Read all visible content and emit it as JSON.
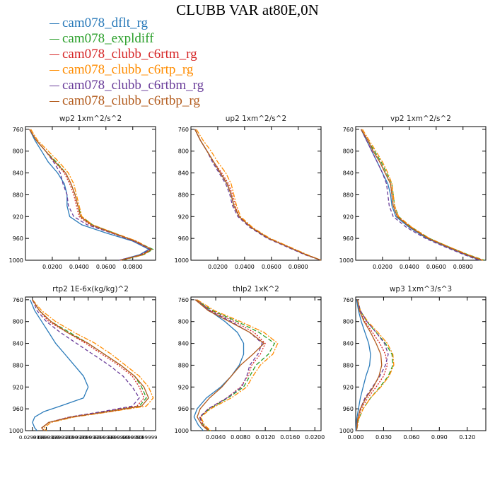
{
  "figure": {
    "title": "CLUBB VAR at80E,0N"
  },
  "legend": [
    {
      "label": "cam078_dflt_rg",
      "color": "#2b7bba"
    },
    {
      "label": "cam078_expldiff",
      "color": "#2ca02c"
    },
    {
      "label": "cam078_clubb_c6rtm_rg",
      "color": "#d62728"
    },
    {
      "label": "cam078_clubb_c6rtp_rg",
      "color": "#ff8c00"
    },
    {
      "label": "cam078_clubb_c6rtbm_rg",
      "color": "#6a3d9a"
    },
    {
      "label": "cam078_clubb_c6rtbp_rg",
      "color": "#b35c1e"
    }
  ],
  "series_styles": [
    {
      "color": "#2b7bba",
      "dash": ""
    },
    {
      "color": "#2ca02c",
      "dash": "6,3"
    },
    {
      "color": "#d62728",
      "dash": "2,2"
    },
    {
      "color": "#ff8c00",
      "dash": "7,2,2,2"
    },
    {
      "color": "#6a3d9a",
      "dash": "5,3"
    },
    {
      "color": "#b35c1e",
      "dash": ""
    }
  ],
  "chart_data": [
    {
      "type": "line",
      "title": "wp2  1xm^2/s^2",
      "y_label_ticks": [
        "760",
        "800",
        "840",
        "880",
        "920",
        "960",
        "1000"
      ],
      "ylim": [
        755,
        1000
      ],
      "xlim": [
        0.0,
        0.097
      ],
      "x_ticks": [
        0.02,
        0.04,
        0.06,
        0.08
      ],
      "x_tick_labels": [
        "0.0200",
        "0.0400",
        "0.0600",
        "0.0800"
      ],
      "levels": [
        760,
        780,
        800,
        820,
        840,
        860,
        880,
        900,
        920,
        935,
        950,
        965,
        980,
        990,
        1000
      ],
      "series": [
        {
          "values": [
            0.003,
            0.007,
            0.012,
            0.017,
            0.024,
            0.029,
            0.031,
            0.031,
            0.033,
            0.042,
            0.06,
            0.08,
            0.092,
            0.085,
            0.07
          ]
        },
        {
          "values": [
            0.003,
            0.008,
            0.015,
            0.023,
            0.03,
            0.034,
            0.037,
            0.039,
            0.042,
            0.05,
            0.066,
            0.082,
            0.095,
            0.088,
            0.072
          ]
        },
        {
          "values": [
            0.003,
            0.008,
            0.015,
            0.022,
            0.029,
            0.033,
            0.036,
            0.038,
            0.04,
            0.048,
            0.064,
            0.081,
            0.093,
            0.086,
            0.07
          ]
        },
        {
          "values": [
            0.004,
            0.009,
            0.017,
            0.025,
            0.032,
            0.036,
            0.038,
            0.04,
            0.042,
            0.05,
            0.066,
            0.083,
            0.094,
            0.088,
            0.071
          ]
        },
        {
          "values": [
            0.003,
            0.008,
            0.015,
            0.021,
            0.026,
            0.028,
            0.031,
            0.032,
            0.036,
            0.046,
            0.064,
            0.081,
            0.093,
            0.086,
            0.07
          ]
        },
        {
          "values": [
            0.003,
            0.008,
            0.015,
            0.022,
            0.03,
            0.034,
            0.037,
            0.039,
            0.041,
            0.049,
            0.065,
            0.082,
            0.094,
            0.087,
            0.071
          ]
        }
      ]
    },
    {
      "type": "line",
      "title": "up2  1xm^2/s^2",
      "y_label_ticks": [
        "760",
        "800",
        "840",
        "880",
        "920",
        "960",
        "1000"
      ],
      "ylim": [
        755,
        1000
      ],
      "xlim": [
        0.0,
        0.097
      ],
      "x_ticks": [
        0.02,
        0.04,
        0.06,
        0.08
      ],
      "x_tick_labels": [
        "0.0200",
        "0.0400",
        "0.0600",
        "0.0800"
      ],
      "levels": [
        760,
        780,
        800,
        820,
        840,
        860,
        880,
        900,
        920,
        940,
        960,
        975,
        990,
        1000
      ],
      "series": [
        {
          "values": [
            0.003,
            0.007,
            0.012,
            0.017,
            0.022,
            0.027,
            0.03,
            0.032,
            0.036,
            0.045,
            0.058,
            0.072,
            0.086,
            0.097
          ]
        },
        {
          "values": [
            0.003,
            0.007,
            0.012,
            0.017,
            0.022,
            0.027,
            0.03,
            0.032,
            0.036,
            0.045,
            0.058,
            0.072,
            0.086,
            0.097
          ]
        },
        {
          "values": [
            0.003,
            0.007,
            0.012,
            0.017,
            0.023,
            0.028,
            0.031,
            0.033,
            0.036,
            0.045,
            0.058,
            0.072,
            0.086,
            0.097
          ]
        },
        {
          "values": [
            0.004,
            0.009,
            0.015,
            0.02,
            0.026,
            0.03,
            0.032,
            0.034,
            0.037,
            0.046,
            0.059,
            0.073,
            0.087,
            0.097
          ]
        },
        {
          "values": [
            0.003,
            0.007,
            0.012,
            0.016,
            0.021,
            0.026,
            0.029,
            0.031,
            0.035,
            0.044,
            0.057,
            0.071,
            0.085,
            0.097
          ]
        },
        {
          "values": [
            0.003,
            0.007,
            0.012,
            0.017,
            0.022,
            0.027,
            0.03,
            0.032,
            0.036,
            0.045,
            0.058,
            0.072,
            0.086,
            0.097
          ]
        }
      ]
    },
    {
      "type": "line",
      "title": "vp2  1xm^2/s^2",
      "y_label_ticks": [
        "760",
        "800",
        "840",
        "880",
        "920",
        "960",
        "1000"
      ],
      "ylim": [
        755,
        1000
      ],
      "xlim": [
        0.0,
        0.097
      ],
      "x_ticks": [
        0.02,
        0.04,
        0.06,
        0.08
      ],
      "x_tick_labels": [
        "0.0200",
        "0.0400",
        "0.0600",
        "0.0800"
      ],
      "levels": [
        760,
        780,
        800,
        820,
        840,
        860,
        880,
        900,
        920,
        940,
        960,
        975,
        990,
        1000
      ],
      "series": [
        {
          "values": [
            0.004,
            0.008,
            0.012,
            0.016,
            0.02,
            0.024,
            0.026,
            0.027,
            0.03,
            0.04,
            0.053,
            0.067,
            0.082,
            0.093
          ]
        },
        {
          "values": [
            0.004,
            0.009,
            0.014,
            0.019,
            0.023,
            0.027,
            0.028,
            0.029,
            0.032,
            0.042,
            0.055,
            0.069,
            0.084,
            0.096
          ]
        },
        {
          "values": [
            0.004,
            0.009,
            0.013,
            0.018,
            0.022,
            0.026,
            0.027,
            0.028,
            0.031,
            0.041,
            0.054,
            0.068,
            0.083,
            0.095
          ]
        },
        {
          "values": [
            0.005,
            0.01,
            0.015,
            0.02,
            0.024,
            0.027,
            0.028,
            0.029,
            0.032,
            0.042,
            0.055,
            0.069,
            0.084,
            0.095
          ]
        },
        {
          "values": [
            0.004,
            0.008,
            0.012,
            0.016,
            0.02,
            0.023,
            0.024,
            0.025,
            0.028,
            0.038,
            0.052,
            0.066,
            0.081,
            0.092
          ]
        },
        {
          "values": [
            0.004,
            0.009,
            0.013,
            0.018,
            0.022,
            0.026,
            0.027,
            0.028,
            0.031,
            0.041,
            0.054,
            0.068,
            0.083,
            0.094
          ]
        }
      ]
    },
    {
      "type": "line",
      "title": "rtp2  1E-6x(kg/kg)^2",
      "y_label_ticks": [
        "760",
        "800",
        "840",
        "880",
        "920",
        "960",
        "1000"
      ],
      "ylim": [
        755,
        1000
      ],
      "xlim": [
        0.0,
        0.56
      ],
      "x_ticks": [
        0.03,
        0.09,
        0.15,
        0.21,
        0.27,
        0.33,
        0.39,
        0.45,
        0.51
      ],
      "x_tick_labels": [
        "0.0299999",
        "0.0899999",
        "0.1499999",
        "0.2099999",
        "0.2699999",
        "0.3299999",
        "0.3899999",
        "0.4499999",
        "0.5099999"
      ],
      "levels": [
        760,
        780,
        800,
        820,
        840,
        860,
        880,
        900,
        920,
        940,
        955,
        965,
        975,
        985,
        995,
        1000
      ],
      "series": [
        {
          "values": [
            0.02,
            0.04,
            0.07,
            0.1,
            0.13,
            0.17,
            0.21,
            0.25,
            0.27,
            0.25,
            0.15,
            0.08,
            0.04,
            0.03,
            0.04,
            0.05
          ]
        },
        {
          "values": [
            0.03,
            0.06,
            0.11,
            0.19,
            0.27,
            0.34,
            0.41,
            0.47,
            0.5,
            0.52,
            0.49,
            0.35,
            0.2,
            0.1,
            0.07,
            0.08
          ]
        },
        {
          "values": [
            0.03,
            0.06,
            0.1,
            0.18,
            0.26,
            0.33,
            0.4,
            0.46,
            0.49,
            0.51,
            0.48,
            0.34,
            0.19,
            0.1,
            0.07,
            0.08
          ]
        },
        {
          "values": [
            0.03,
            0.07,
            0.13,
            0.21,
            0.3,
            0.37,
            0.43,
            0.49,
            0.53,
            0.55,
            0.52,
            0.37,
            0.21,
            0.11,
            0.08,
            0.09
          ]
        },
        {
          "values": [
            0.03,
            0.05,
            0.09,
            0.15,
            0.22,
            0.29,
            0.36,
            0.42,
            0.46,
            0.49,
            0.46,
            0.33,
            0.19,
            0.1,
            0.07,
            0.08
          ]
        },
        {
          "values": [
            0.03,
            0.06,
            0.11,
            0.18,
            0.27,
            0.34,
            0.41,
            0.47,
            0.51,
            0.53,
            0.5,
            0.36,
            0.2,
            0.1,
            0.07,
            0.08
          ]
        }
      ]
    },
    {
      "type": "line",
      "title": "thlp2  1xK^2",
      "y_label_ticks": [
        "760",
        "800",
        "840",
        "880",
        "920",
        "960",
        "1000"
      ],
      "ylim": [
        755,
        1000
      ],
      "xlim": [
        0.0,
        0.021
      ],
      "x_ticks": [
        0.004,
        0.008,
        0.012,
        0.016,
        0.02
      ],
      "x_tick_labels": [
        "0.0040",
        "0.0080",
        "0.0120",
        "0.0160",
        "0.0200"
      ],
      "levels": [
        760,
        780,
        800,
        820,
        840,
        860,
        880,
        900,
        920,
        940,
        960,
        975,
        990,
        1000
      ],
      "series": [
        {
          "values": [
            0.001,
            0.003,
            0.0055,
            0.0075,
            0.0085,
            0.0085,
            0.0078,
            0.0065,
            0.0048,
            0.0025,
            0.001,
            0.0005,
            0.0012,
            0.002
          ]
        },
        {
          "values": [
            0.0008,
            0.0035,
            0.0075,
            0.011,
            0.0135,
            0.0125,
            0.0105,
            0.0095,
            0.0085,
            0.006,
            0.003,
            0.0015,
            0.002,
            0.003
          ]
        },
        {
          "values": [
            0.0008,
            0.0032,
            0.007,
            0.0102,
            0.012,
            0.0112,
            0.0098,
            0.0092,
            0.008,
            0.0058,
            0.0028,
            0.0015,
            0.002,
            0.003
          ]
        },
        {
          "values": [
            0.001,
            0.0038,
            0.008,
            0.0118,
            0.014,
            0.0132,
            0.0112,
            0.01,
            0.009,
            0.0065,
            0.0032,
            0.0016,
            0.0022,
            0.0032
          ]
        },
        {
          "values": [
            0.0007,
            0.003,
            0.0065,
            0.0095,
            0.0115,
            0.0108,
            0.0095,
            0.009,
            0.0082,
            0.0058,
            0.0028,
            0.0014,
            0.0018,
            0.0028
          ]
        },
        {
          "values": [
            0.0007,
            0.0028,
            0.0062,
            0.0095,
            0.0118,
            0.01,
            0.008,
            0.0065,
            0.005,
            0.003,
            0.0015,
            0.001,
            0.0018,
            0.0028
          ]
        }
      ]
    },
    {
      "type": "line",
      "title": "wp3  1xm^3/s^3",
      "y_label_ticks": [
        "760",
        "800",
        "840",
        "880",
        "920",
        "960",
        "1000"
      ],
      "ylim": [
        755,
        1000
      ],
      "xlim": [
        0.0,
        0.14
      ],
      "x_ticks": [
        0.0,
        0.03,
        0.06,
        0.09,
        0.12
      ],
      "x_tick_labels": [
        "0.000",
        "0.030",
        "0.060",
        "0.090",
        "0.120"
      ],
      "levels": [
        760,
        780,
        800,
        820,
        840,
        860,
        880,
        900,
        920,
        940,
        960,
        980,
        1000
      ],
      "series": [
        {
          "values": [
            0.001,
            0.003,
            0.006,
            0.01,
            0.014,
            0.016,
            0.015,
            0.011,
            0.008,
            0.005,
            0.003,
            0.001,
            0.0
          ]
        },
        {
          "values": [
            0.002,
            0.005,
            0.012,
            0.022,
            0.032,
            0.039,
            0.04,
            0.035,
            0.026,
            0.016,
            0.008,
            0.003,
            0.001
          ]
        },
        {
          "values": [
            0.002,
            0.004,
            0.01,
            0.018,
            0.026,
            0.032,
            0.034,
            0.03,
            0.022,
            0.013,
            0.006,
            0.002,
            0.001
          ]
        },
        {
          "values": [
            0.002,
            0.005,
            0.013,
            0.024,
            0.034,
            0.04,
            0.041,
            0.036,
            0.027,
            0.016,
            0.008,
            0.003,
            0.001
          ]
        },
        {
          "values": [
            0.002,
            0.005,
            0.012,
            0.022,
            0.031,
            0.035,
            0.032,
            0.026,
            0.018,
            0.01,
            0.005,
            0.002,
            0.001
          ]
        },
        {
          "values": [
            0.002,
            0.004,
            0.009,
            0.016,
            0.022,
            0.027,
            0.028,
            0.025,
            0.019,
            0.011,
            0.005,
            0.002,
            0.001
          ]
        }
      ]
    }
  ]
}
